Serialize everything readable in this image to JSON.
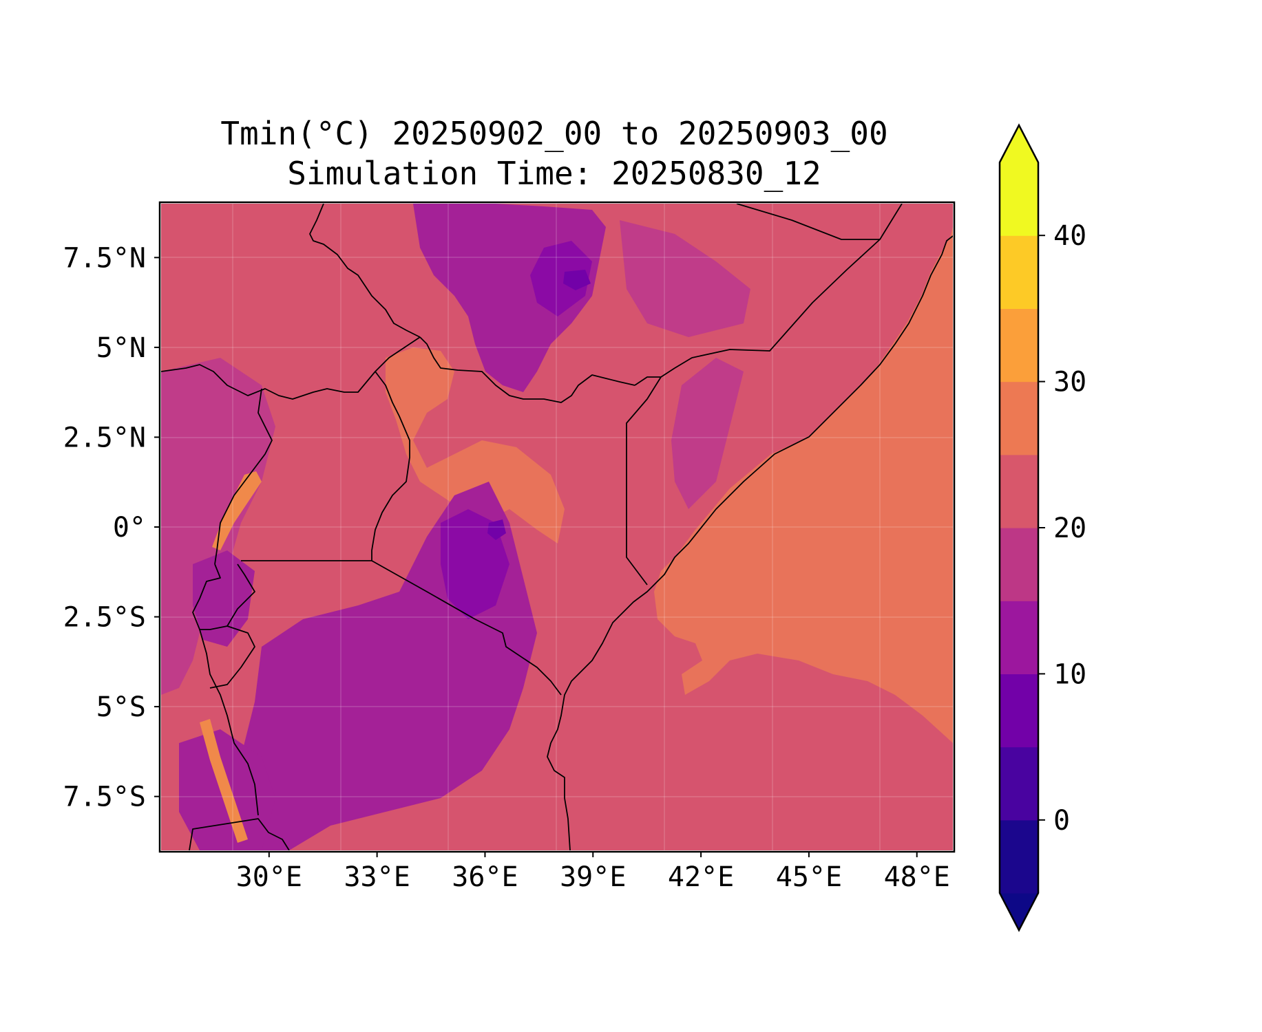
{
  "title": {
    "line1": "Tmin(°C) 20250902_00 to 20250903_00",
    "line2": "Simulation Time: 20250830_12"
  },
  "map": {
    "region": "East Africa",
    "variable": "Tmin",
    "units": "°C",
    "extent": {
      "lon": [
        27,
        49
      ],
      "lat": [
        -9,
        9
      ]
    },
    "lon_ticks": [
      {
        "value": 30,
        "label": "30°E"
      },
      {
        "value": 33,
        "label": "33°E"
      },
      {
        "value": 36,
        "label": "36°E"
      },
      {
        "value": 39,
        "label": "39°E"
      },
      {
        "value": 42,
        "label": "42°E"
      },
      {
        "value": 45,
        "label": "45°E"
      },
      {
        "value": 48,
        "label": "48°E"
      }
    ],
    "lat_ticks": [
      {
        "value": 7.5,
        "label": "7.5°N"
      },
      {
        "value": 5,
        "label": "5°N"
      },
      {
        "value": 2.5,
        "label": "2.5°N"
      },
      {
        "value": 0,
        "label": "0°"
      },
      {
        "value": -2.5,
        "label": "2.5°S"
      },
      {
        "value": -5,
        "label": "5°S"
      },
      {
        "value": -7.5,
        "label": "7.5°S"
      }
    ],
    "gridlines": true,
    "colors": {
      "ocean": "#e8735a",
      "land": "#d6546e",
      "highland": "#c03c89",
      "cool": "#a42197",
      "cold": "#8b0aa5",
      "warm_fringe": "#f0894a",
      "border": "#000000"
    }
  },
  "colorbar": {
    "cmap": "plasma",
    "levels": [
      -5,
      0,
      5,
      10,
      15,
      20,
      25,
      30,
      35,
      40,
      45
    ],
    "colors": [
      "#1b068d",
      "#4903a0",
      "#7201a8",
      "#9c179e",
      "#bd3786",
      "#d8576b",
      "#ed7953",
      "#fb9f3a",
      "#fdca26",
      "#f0f921"
    ],
    "under_color": "#0d0887",
    "over_color": "#f0f921",
    "extend": "both",
    "ticks": [
      {
        "value": 0,
        "label": "0"
      },
      {
        "value": 10,
        "label": "10"
      },
      {
        "value": 20,
        "label": "20"
      },
      {
        "value": 30,
        "label": "30"
      },
      {
        "value": 40,
        "label": "40"
      }
    ]
  }
}
